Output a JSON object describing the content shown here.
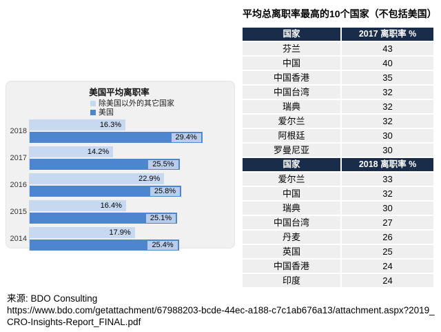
{
  "chart_data": [
    {
      "type": "bar",
      "orientation": "horizontal",
      "title": "美国平均离职率",
      "categories": [
        "2018",
        "2017",
        "2016",
        "2015",
        "2014"
      ],
      "series": [
        {
          "name": "除美国以外的其它国家",
          "color": "#c7d9f1",
          "values": [
            16.3,
            14.2,
            22.9,
            16.4,
            17.9
          ]
        },
        {
          "name": "美国",
          "color": "#4d86cf",
          "values": [
            29.4,
            25.5,
            25.8,
            25.1,
            25.4
          ]
        }
      ],
      "value_suffix": "%",
      "xlim": [
        0,
        34
      ],
      "grid": false,
      "legend_position": "top-center"
    },
    {
      "type": "table",
      "title": "平均总离职率最高的10个国家（不包括美国）",
      "sections": [
        {
          "headers": [
            "国家",
            "2017 离职率 %"
          ],
          "rows": [
            [
              "芬兰",
              "43"
            ],
            [
              "中国",
              "40"
            ],
            [
              "中国香港",
              "35"
            ],
            [
              "中国台湾",
              "32"
            ],
            [
              "瑞典",
              "32"
            ],
            [
              "爱尔兰",
              "32"
            ],
            [
              "阿根廷",
              "30"
            ],
            [
              "罗曼尼亚",
              "30"
            ]
          ]
        },
        {
          "headers": [
            "国家",
            "2018 离职率 %"
          ],
          "rows": [
            [
              "爱尔兰",
              "33"
            ],
            [
              "中国",
              "32"
            ],
            [
              "瑞典",
              "30"
            ],
            [
              "中国台湾",
              "27"
            ],
            [
              "丹麦",
              "26"
            ],
            [
              "英国",
              "25"
            ],
            [
              "中国香港",
              "24"
            ],
            [
              "印度",
              "24"
            ]
          ]
        }
      ]
    }
  ],
  "chart": {
    "title": "美国平均离职率",
    "panel_bg": "#f1f1f2",
    "label_box_color": "#b9cdeb"
  },
  "table": {
    "title": "平均总离职率最高的10个国家（不包括美国）",
    "header_bg": "#192c49",
    "row_bg": "#efefef"
  },
  "source": {
    "label": "来源: BDO Consulting",
    "url": "https://www.bdo.com/getattachment/67988203-bcde-44ec-a188-c7c1ab676a13/attachment.aspx?2019_CRO-Insights-Report_FINAL.pdf"
  }
}
